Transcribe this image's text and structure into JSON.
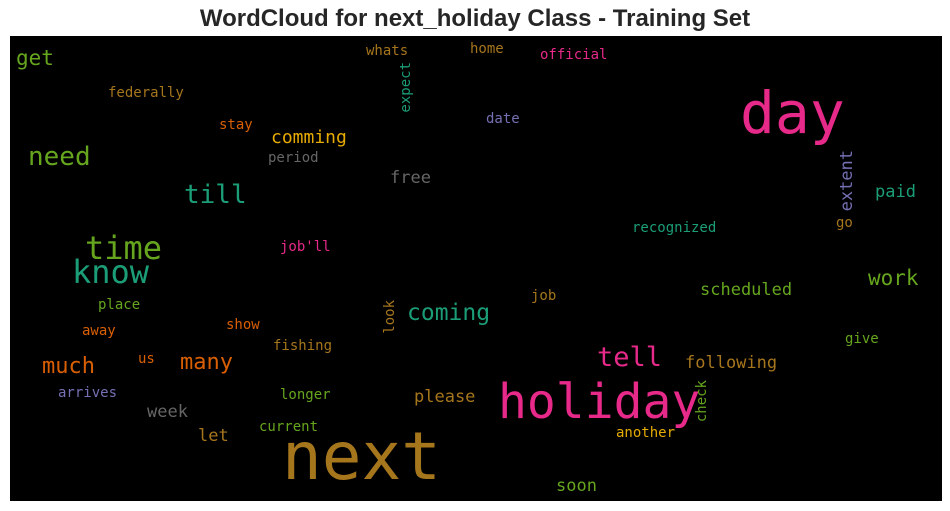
{
  "chart_data": {
    "type": "wordcloud",
    "title": "WordCloud for next_holiday Class - Training Set",
    "background": "#000000",
    "words": [
      {
        "text": "next",
        "color": "#a6761d",
        "weight": 1.0
      },
      {
        "text": "holiday",
        "color": "#e7298a",
        "weight": 0.78
      },
      {
        "text": "day",
        "color": "#e7298a",
        "weight": 0.65
      },
      {
        "text": "know",
        "color": "#1b9e77",
        "weight": 0.5
      },
      {
        "text": "time",
        "color": "#66a61e",
        "weight": 0.5
      },
      {
        "text": "tell",
        "color": "#e7298a",
        "weight": 0.42
      },
      {
        "text": "need",
        "color": "#66a61e",
        "weight": 0.4
      },
      {
        "text": "till",
        "color": "#1b9e77",
        "weight": 0.4
      },
      {
        "text": "coming",
        "color": "#1b9e77",
        "weight": 0.36
      },
      {
        "text": "much",
        "color": "#d95f02",
        "weight": 0.36
      },
      {
        "text": "many",
        "color": "#d95f02",
        "weight": 0.34
      },
      {
        "text": "work",
        "color": "#66a61e",
        "weight": 0.34
      },
      {
        "text": "get",
        "color": "#66a61e",
        "weight": 0.33
      },
      {
        "text": "comming",
        "color": "#e6ab02",
        "weight": 0.3
      },
      {
        "text": "following",
        "color": "#a6761d",
        "weight": 0.3
      },
      {
        "text": "scheduled",
        "color": "#66a61e",
        "weight": 0.28
      },
      {
        "text": "extent",
        "color": "#7570b3",
        "weight": 0.28
      },
      {
        "text": "free",
        "color": "#666666",
        "weight": 0.27
      },
      {
        "text": "paid",
        "color": "#1b9e77",
        "weight": 0.27
      },
      {
        "text": "please",
        "color": "#a6761d",
        "weight": 0.27
      },
      {
        "text": "week",
        "color": "#666666",
        "weight": 0.27
      },
      {
        "text": "let",
        "color": "#a6761d",
        "weight": 0.27
      },
      {
        "text": "soon",
        "color": "#66a61e",
        "weight": 0.27
      },
      {
        "text": "recognized",
        "color": "#1b9e77",
        "weight": 0.22
      },
      {
        "text": "date",
        "color": "#7570b3",
        "weight": 0.2
      },
      {
        "text": "whats",
        "color": "#a6761d",
        "weight": 0.2
      },
      {
        "text": "home",
        "color": "#a6761d",
        "weight": 0.2
      },
      {
        "text": "official",
        "color": "#e7298a",
        "weight": 0.2
      },
      {
        "text": "expect",
        "color": "#1b9e77",
        "weight": 0.2
      },
      {
        "text": "federally",
        "color": "#a6761d",
        "weight": 0.2
      },
      {
        "text": "stay",
        "color": "#d95f02",
        "weight": 0.2
      },
      {
        "text": "period",
        "color": "#666666",
        "weight": 0.2
      },
      {
        "text": "job'll",
        "color": "#e7298a",
        "weight": 0.2
      },
      {
        "text": "go",
        "color": "#a6761d",
        "weight": 0.2
      },
      {
        "text": "place",
        "color": "#66a61e",
        "weight": 0.2
      },
      {
        "text": "away",
        "color": "#d95f02",
        "weight": 0.2
      },
      {
        "text": "show",
        "color": "#d95f02",
        "weight": 0.2
      },
      {
        "text": "job",
        "color": "#a6761d",
        "weight": 0.2
      },
      {
        "text": "look",
        "color": "#a6761d",
        "weight": 0.2
      },
      {
        "text": "fishing",
        "color": "#a6761d",
        "weight": 0.2
      },
      {
        "text": "us",
        "color": "#d95f02",
        "weight": 0.2
      },
      {
        "text": "give",
        "color": "#66a61e",
        "weight": 0.2
      },
      {
        "text": "arrives",
        "color": "#7570b3",
        "weight": 0.2
      },
      {
        "text": "longer",
        "color": "#66a61e",
        "weight": 0.2
      },
      {
        "text": "check",
        "color": "#66a61e",
        "weight": 0.2
      },
      {
        "text": "current",
        "color": "#66a61e",
        "weight": 0.2
      },
      {
        "text": "another",
        "color": "#e6ab02",
        "weight": 0.2
      }
    ]
  }
}
